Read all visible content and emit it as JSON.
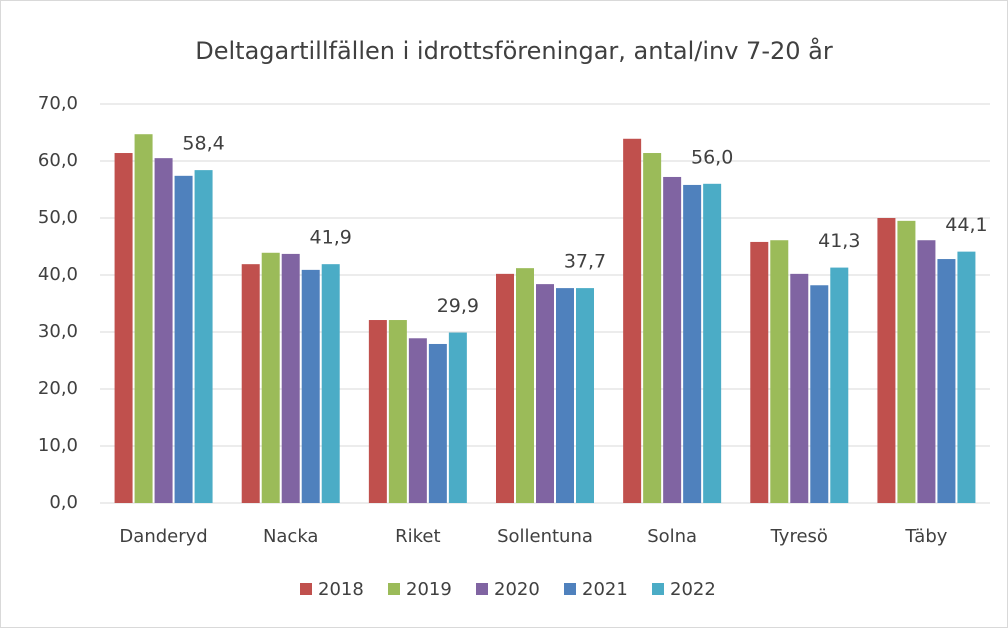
{
  "chart_data": {
    "type": "bar",
    "title": "Deltagartillfällen i idrottsföreningar, antal/inv 7-20 år",
    "categories": [
      "Danderyd",
      "Nacka",
      "Riket",
      "Sollentuna",
      "Solna",
      "Tyresö",
      "Täby"
    ],
    "series": [
      {
        "name": "2018",
        "color": "#c0504d",
        "values": [
          61.4,
          41.9,
          32.1,
          40.2,
          63.9,
          45.8,
          50.0
        ]
      },
      {
        "name": "2019",
        "color": "#9bbb59",
        "values": [
          64.7,
          43.9,
          32.1,
          41.2,
          61.4,
          46.1,
          49.5
        ]
      },
      {
        "name": "2020",
        "color": "#8064a2",
        "values": [
          60.5,
          43.7,
          28.9,
          38.4,
          57.2,
          40.2,
          46.1
        ]
      },
      {
        "name": "2021",
        "color": "#4f81bd",
        "values": [
          57.4,
          40.9,
          27.9,
          37.7,
          55.8,
          38.2,
          42.8
        ]
      },
      {
        "name": "2022",
        "color": "#4bacc6",
        "values": [
          58.4,
          41.9,
          29.9,
          37.7,
          56.0,
          41.3,
          44.1
        ],
        "value_labels": [
          "58,4",
          "41,9",
          "29,9",
          "37,7",
          "56,0",
          "41,3",
          "44,1"
        ]
      }
    ],
    "ylim": [
      0,
      70
    ],
    "yticks": [
      {
        "value": 0,
        "label": "0,0"
      },
      {
        "value": 10,
        "label": "10,0"
      },
      {
        "value": 20,
        "label": "20,0"
      },
      {
        "value": 30,
        "label": "30,0"
      },
      {
        "value": 40,
        "label": "40,0"
      },
      {
        "value": 50,
        "label": "50,0"
      },
      {
        "value": 60,
        "label": "60,0"
      },
      {
        "value": 70,
        "label": "70,0"
      }
    ],
    "grid": true,
    "legend": "bottom"
  }
}
